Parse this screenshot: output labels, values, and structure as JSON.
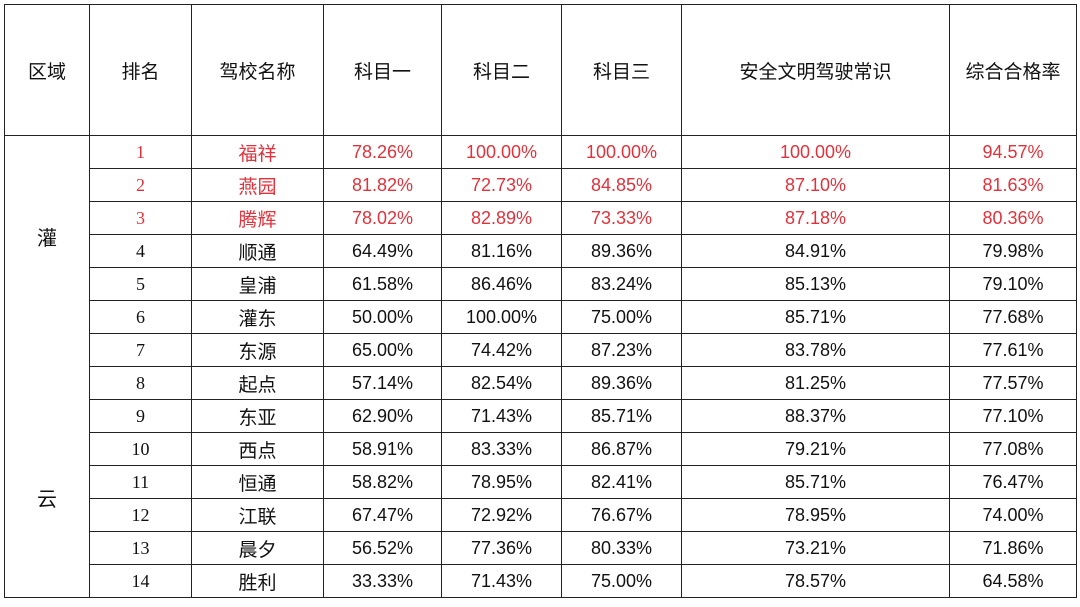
{
  "headers": [
    "区域",
    "排名",
    "驾校名称",
    "科目一",
    "科目二",
    "科目三",
    "安全文明驾驶常识",
    "综合合格率"
  ],
  "region": [
    "灌",
    "云"
  ],
  "colors": {
    "highlight": "#e0323c",
    "text": "#111111",
    "border": "#222222"
  },
  "rows": [
    {
      "rank": "1",
      "name": "福祥",
      "k1": "78.26%",
      "k2": "100.00%",
      "k3": "100.00%",
      "safe": "100.00%",
      "total": "94.57%",
      "highlight": true
    },
    {
      "rank": "2",
      "name": "燕园",
      "k1": "81.82%",
      "k2": "72.73%",
      "k3": "84.85%",
      "safe": "87.10%",
      "total": "81.63%",
      "highlight": true
    },
    {
      "rank": "3",
      "name": "腾辉",
      "k1": "78.02%",
      "k2": "82.89%",
      "k3": "73.33%",
      "safe": "87.18%",
      "total": "80.36%",
      "highlight": true
    },
    {
      "rank": "4",
      "name": "顺通",
      "k1": "64.49%",
      "k2": "81.16%",
      "k3": "89.36%",
      "safe": "84.91%",
      "total": "79.98%",
      "highlight": false
    },
    {
      "rank": "5",
      "name": "皇浦",
      "k1": "61.58%",
      "k2": "86.46%",
      "k3": "83.24%",
      "safe": "85.13%",
      "total": "79.10%",
      "highlight": false
    },
    {
      "rank": "6",
      "name": "灌东",
      "k1": "50.00%",
      "k2": "100.00%",
      "k3": "75.00%",
      "safe": "85.71%",
      "total": "77.68%",
      "highlight": false
    },
    {
      "rank": "7",
      "name": "东源",
      "k1": "65.00%",
      "k2": "74.42%",
      "k3": "87.23%",
      "safe": "83.78%",
      "total": "77.61%",
      "highlight": false
    },
    {
      "rank": "8",
      "name": "起点",
      "k1": "57.14%",
      "k2": "82.54%",
      "k3": "89.36%",
      "safe": "81.25%",
      "total": "77.57%",
      "highlight": false
    },
    {
      "rank": "9",
      "name": "东亚",
      "k1": "62.90%",
      "k2": "71.43%",
      "k3": "85.71%",
      "safe": "88.37%",
      "total": "77.10%",
      "highlight": false
    },
    {
      "rank": "10",
      "name": "西点",
      "k1": "58.91%",
      "k2": "83.33%",
      "k3": "86.87%",
      "safe": "79.21%",
      "total": "77.08%",
      "highlight": false
    },
    {
      "rank": "11",
      "name": "恒通",
      "k1": "58.82%",
      "k2": "78.95%",
      "k3": "82.41%",
      "safe": "85.71%",
      "total": "76.47%",
      "highlight": false
    },
    {
      "rank": "12",
      "name": "江联",
      "k1": "67.47%",
      "k2": "72.92%",
      "k3": "76.67%",
      "safe": "78.95%",
      "total": "74.00%",
      "highlight": false
    },
    {
      "rank": "13",
      "name": "晨夕",
      "k1": "56.52%",
      "k2": "77.36%",
      "k3": "80.33%",
      "safe": "73.21%",
      "total": "71.86%",
      "highlight": false
    },
    {
      "rank": "14",
      "name": "胜利",
      "k1": "33.33%",
      "k2": "71.43%",
      "k3": "75.00%",
      "safe": "78.57%",
      "total": "64.58%",
      "highlight": false
    }
  ]
}
